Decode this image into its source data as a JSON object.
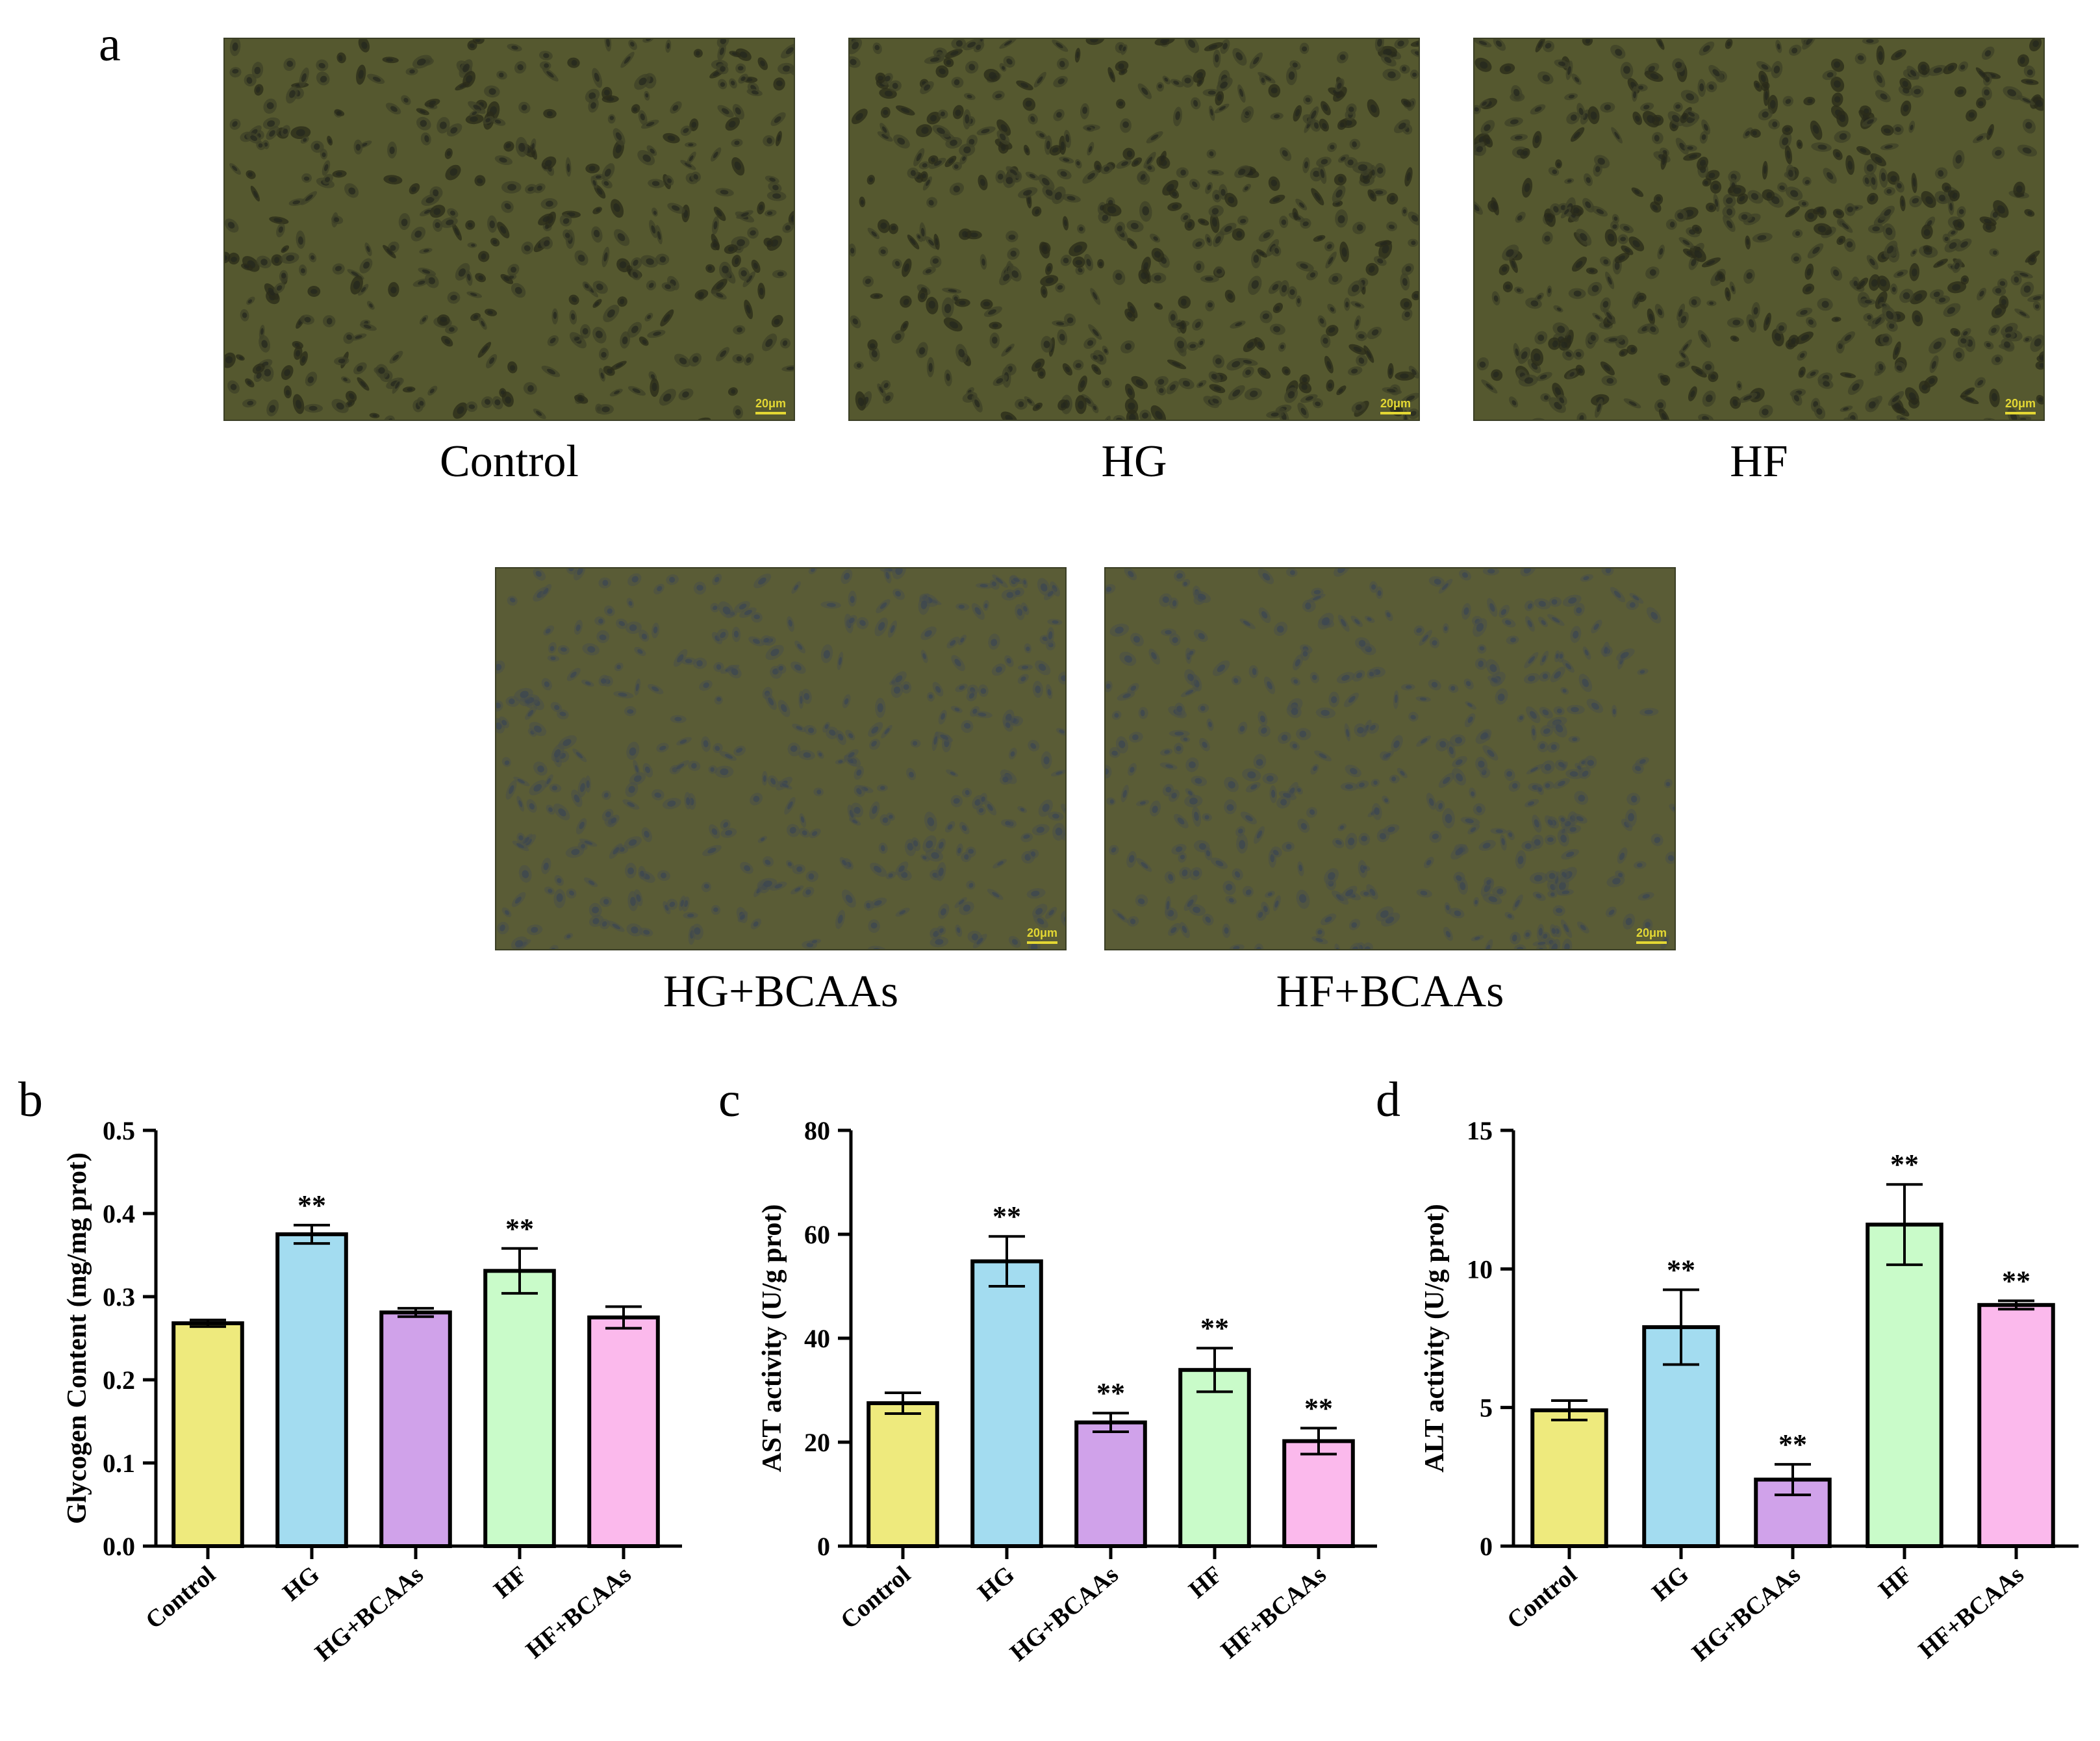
{
  "panels": {
    "a": "a",
    "b": "b",
    "c": "c",
    "d": "d"
  },
  "micrographs": [
    {
      "caption": "Control",
      "scale_label": "20μm",
      "cell_density": 0.8,
      "stain": "dark"
    },
    {
      "caption": "HG",
      "scale_label": "20μm",
      "cell_density": 0.95,
      "stain": "dark"
    },
    {
      "caption": "HF",
      "scale_label": "20μm",
      "cell_density": 1.0,
      "stain": "dark"
    },
    {
      "caption": "HG+BCAAs",
      "scale_label": "20μm",
      "cell_density": 0.75,
      "stain": "light"
    },
    {
      "caption": "HF+BCAAs",
      "scale_label": "20μm",
      "cell_density": 0.75,
      "stain": "light"
    }
  ],
  "colors": {
    "Control": "#eeea7d",
    "HG": "#a3dcf0",
    "HG+BCAAs": "#d0a2ea",
    "HF": "#c9fbc9",
    "HF+BCAAs": "#fbb9ec",
    "micro_bg_dark": "#55582f",
    "micro_bg_light": "#5a5c36"
  },
  "chart_data": [
    {
      "panel": "b",
      "type": "bar",
      "categories": [
        "Control",
        "HG",
        "HG+BCAAs",
        "HF",
        "HF+BCAAs"
      ],
      "values": [
        0.268,
        0.375,
        0.281,
        0.331,
        0.275
      ],
      "errors": [
        0.004,
        0.011,
        0.005,
        0.027,
        0.013
      ],
      "annotations": [
        "",
        "**",
        "",
        "**",
        ""
      ],
      "ylabel": "Glycogen Content  (mg/mg prot)",
      "ylim": [
        0,
        0.5
      ],
      "yticks": [
        "0.0",
        "0.1",
        "0.2",
        "0.3",
        "0.4",
        "0.5"
      ]
    },
    {
      "panel": "c",
      "type": "bar",
      "categories": [
        "Control",
        "HG",
        "HG+BCAAs",
        "HF",
        "HF+BCAAs"
      ],
      "values": [
        27.5,
        54.8,
        23.8,
        33.9,
        20.2
      ],
      "errors": [
        2.0,
        4.8,
        1.8,
        4.2,
        2.5
      ],
      "annotations": [
        "",
        "**",
        "**",
        "**",
        "**"
      ],
      "ylabel": "AST activity (U/g prot)",
      "ylim": [
        0,
        80
      ],
      "yticks": [
        "0",
        "20",
        "40",
        "60",
        "80"
      ]
    },
    {
      "panel": "d",
      "type": "bar",
      "categories": [
        "Control",
        "HG",
        "HG+BCAAs",
        "HF",
        "HF+BCAAs"
      ],
      "values": [
        4.9,
        7.9,
        2.4,
        11.6,
        8.7
      ],
      "errors": [
        0.35,
        1.35,
        0.55,
        1.45,
        0.15
      ],
      "annotations": [
        "",
        "**",
        "**",
        "**",
        "**"
      ],
      "ylabel": "ALT activity (U/g prot)",
      "ylim": [
        0,
        15
      ],
      "yticks": [
        "0",
        "5",
        "10",
        "15"
      ]
    }
  ]
}
